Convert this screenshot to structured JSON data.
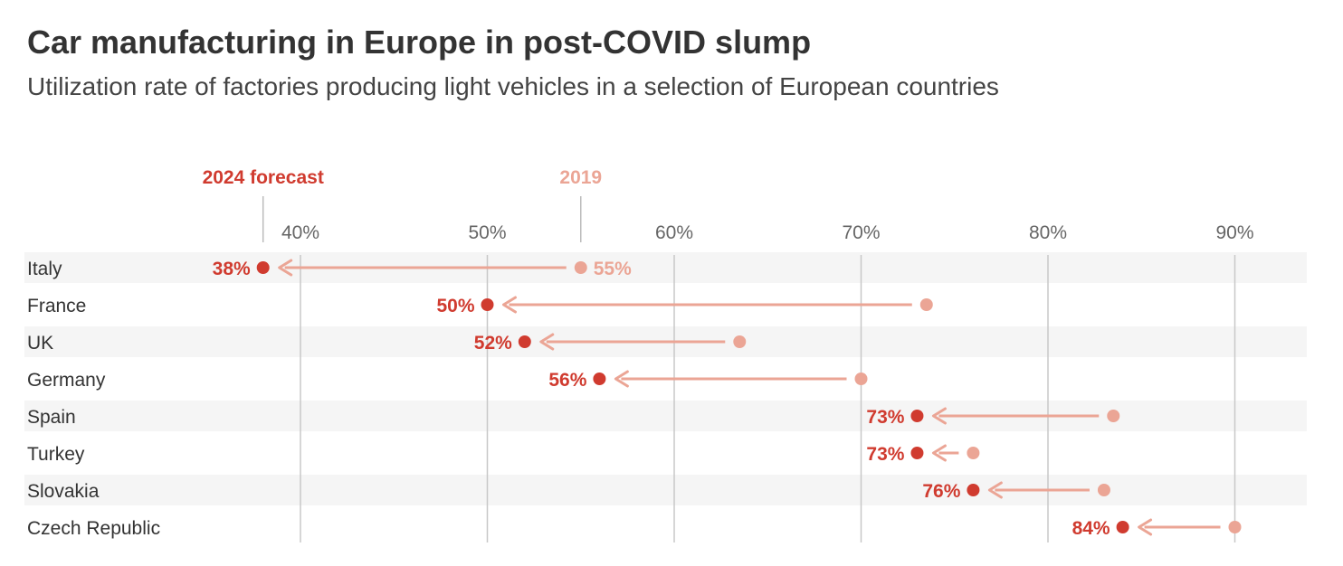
{
  "chart_data": {
    "type": "dot-arrow",
    "title": "Car manufacturing in Europe in post-COVID slump",
    "subtitle": "Utilization rate of factories producing light vehicles in a selection of European countries",
    "xlim": [
      33.5,
      92
    ],
    "x_ticks": [
      40,
      50,
      60,
      70,
      80,
      90
    ],
    "x_tick_labels": [
      "40%",
      "50%",
      "60%",
      "70%",
      "80%",
      "90%"
    ],
    "grid": true,
    "series": [
      {
        "name": "2024 forecast",
        "color": "#d03b2f"
      },
      {
        "name": "2019",
        "color": "#eba595"
      }
    ],
    "legend_markers": {
      "2024 forecast": 38,
      "2019": 55
    },
    "categories": [
      "Italy",
      "France",
      "UK",
      "Germany",
      "Spain",
      "Turkey",
      "Slovakia",
      "Czech Republic"
    ],
    "forecast_2024": [
      38,
      50,
      52,
      56,
      73,
      73,
      76,
      84
    ],
    "forecast_2024_labels": [
      "38%",
      "50%",
      "52%",
      "56%",
      "73%",
      "73%",
      "76%",
      "84%"
    ],
    "values_2019": [
      55,
      73.5,
      63.5,
      70,
      83.5,
      76,
      83,
      90
    ],
    "values_2019_labels": [
      "55%",
      "",
      "",
      "",
      "",
      "",
      "",
      ""
    ],
    "colors": {
      "forecast": "#d03b2f",
      "y2019": "#eba595",
      "band": "#f5f5f5",
      "grid": "#c8c8c8"
    }
  }
}
